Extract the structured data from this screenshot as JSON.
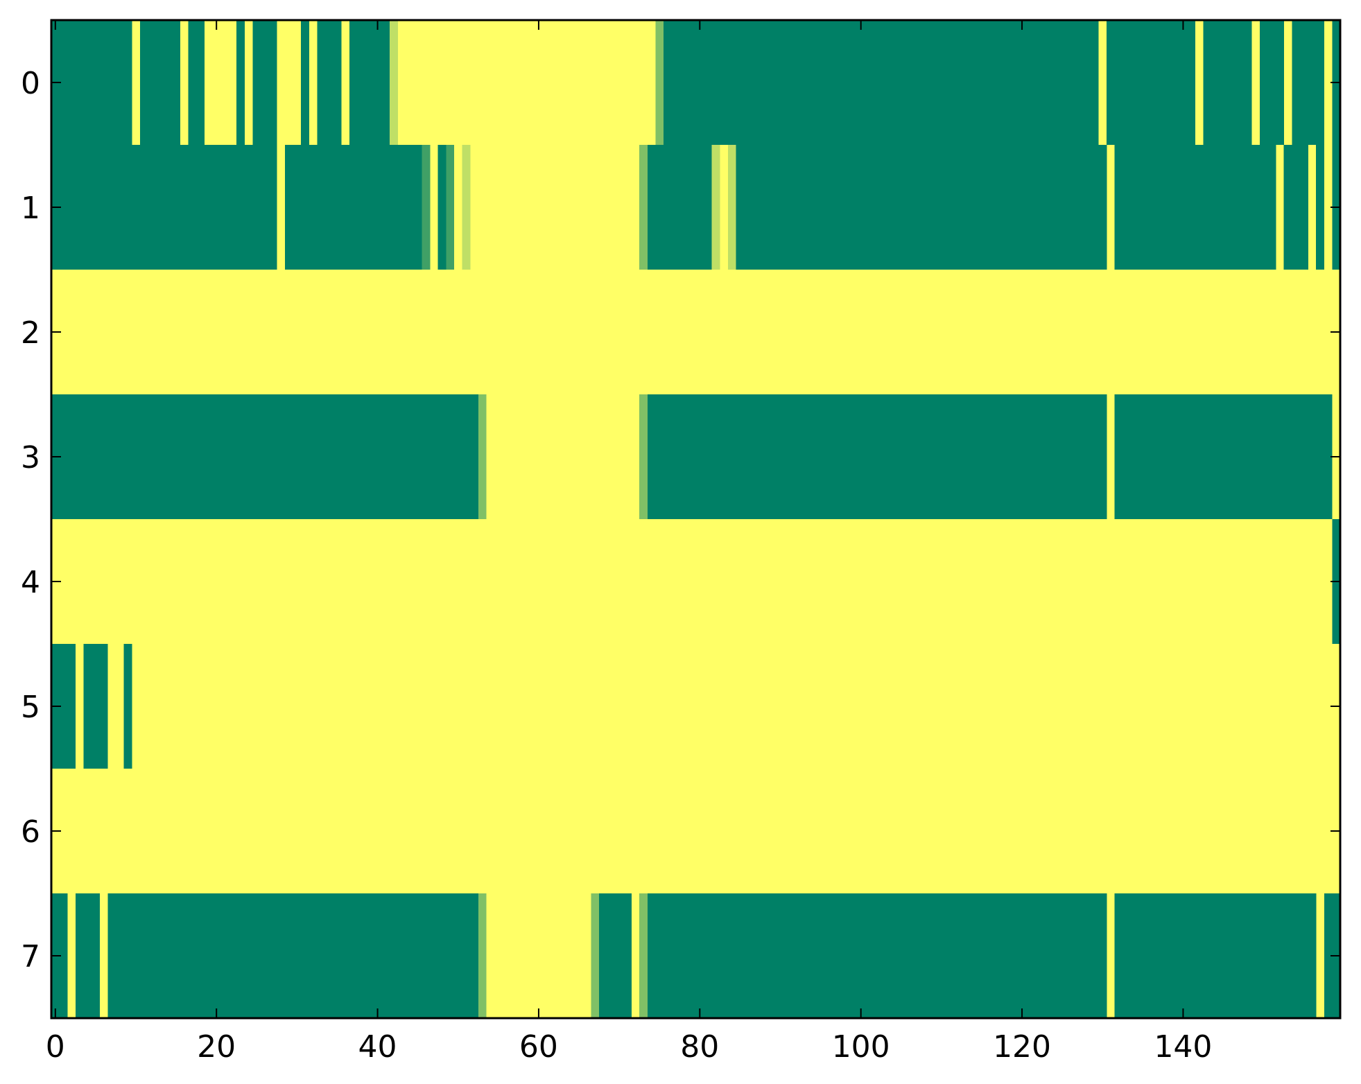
{
  "chart_data": {
    "type": "heatmap",
    "title": "",
    "xlabel": "",
    "ylabel": "",
    "xlim": [
      -0.5,
      159.5
    ],
    "ylim": [
      7.5,
      -0.5
    ],
    "n_columns": 160,
    "rows": [
      0,
      1,
      2,
      3,
      4,
      5,
      6,
      7
    ],
    "x_ticks": [
      0,
      20,
      40,
      60,
      80,
      100,
      120,
      140
    ],
    "x_tick_labels": [
      "0",
      "20",
      "40",
      "60",
      "80",
      "100",
      "120",
      "140"
    ],
    "y_ticks": [
      0,
      1,
      2,
      3,
      4,
      5,
      6,
      7
    ],
    "y_tick_labels": [
      "0",
      "1",
      "2",
      "3",
      "4",
      "5",
      "6",
      "7"
    ],
    "colormap": "summer",
    "colors": {
      "low": "#008066",
      "high": "#ffff66",
      "mid_low": "#40a066",
      "mid_high": "#bfdf66"
    },
    "value_range": [
      0,
      1
    ],
    "default_value": 1,
    "runs": [
      [
        [
          0,
          1,
          0
        ],
        [
          2,
          6,
          0
        ],
        [
          7,
          9,
          0
        ],
        [
          11,
          15,
          0
        ],
        [
          17,
          18,
          0
        ],
        [
          23,
          23,
          0
        ],
        [
          25,
          27,
          0
        ],
        [
          31,
          31,
          0
        ],
        [
          33,
          35,
          0
        ],
        [
          37,
          41,
          0
        ],
        [
          42,
          42,
          0.75
        ],
        [
          75,
          75,
          0.5
        ],
        [
          76,
          129,
          0
        ],
        [
          131,
          141,
          0
        ],
        [
          143,
          148,
          0
        ],
        [
          150,
          152,
          0
        ],
        [
          154,
          157,
          0
        ],
        [
          159,
          159,
          0
        ]
      ],
      [
        [
          0,
          27,
          0
        ],
        [
          29,
          45,
          0
        ],
        [
          46,
          46,
          0.25
        ],
        [
          48,
          48,
          0
        ],
        [
          49,
          49,
          0.25
        ],
        [
          51,
          51,
          0.75
        ],
        [
          73,
          73,
          0.5
        ],
        [
          74,
          81,
          0
        ],
        [
          82,
          82,
          0.75
        ],
        [
          84,
          84,
          0.75
        ],
        [
          85,
          130,
          0
        ],
        [
          132,
          151,
          0
        ],
        [
          153,
          155,
          0
        ],
        [
          157,
          157,
          0
        ],
        [
          159,
          159,
          0
        ]
      ],
      [],
      [
        [
          0,
          52,
          0
        ],
        [
          53,
          53,
          0.5
        ],
        [
          73,
          73,
          0.5
        ],
        [
          74,
          130,
          0
        ],
        [
          132,
          158,
          0
        ]
      ],
      [
        [
          159,
          159,
          0
        ]
      ],
      [
        [
          0,
          2,
          0
        ],
        [
          4,
          6,
          0
        ],
        [
          9,
          9,
          0
        ]
      ],
      [],
      [
        [
          0,
          1,
          0
        ],
        [
          3,
          5,
          0
        ],
        [
          7,
          52,
          0
        ],
        [
          53,
          53,
          0.5
        ],
        [
          67,
          67,
          0.5
        ],
        [
          68,
          71,
          0
        ],
        [
          73,
          73,
          0.5
        ],
        [
          74,
          130,
          0
        ],
        [
          132,
          156,
          0
        ],
        [
          158,
          159,
          0
        ]
      ]
    ]
  }
}
